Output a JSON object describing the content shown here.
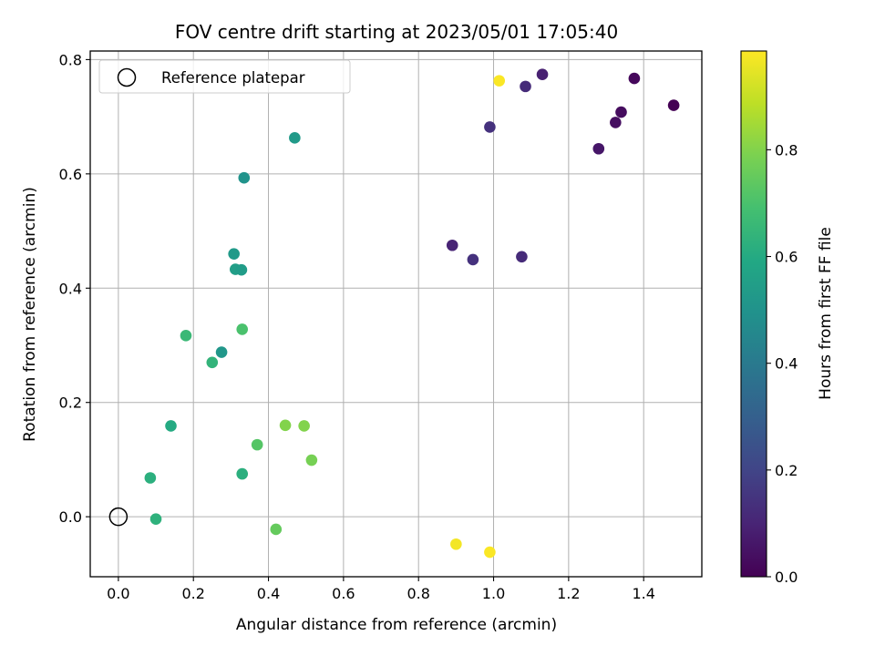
{
  "chart_data": {
    "type": "scatter",
    "title": "FOV centre drift starting at 2023/05/01 17:05:40",
    "xlabel": "Angular distance from reference (arcmin)",
    "ylabel": "Rotation from reference (arcmin)",
    "xlim": [
      -0.075,
      1.555
    ],
    "ylim": [
      -0.105,
      0.815
    ],
    "xticks": [
      0.0,
      0.2,
      0.4,
      0.6,
      0.8,
      1.0,
      1.2,
      1.4
    ],
    "yticks": [
      0.0,
      0.2,
      0.4,
      0.6,
      0.8
    ],
    "grid": true,
    "legend": {
      "placement": "upper-left",
      "entries": [
        {
          "label": "Reference platepar",
          "marker": "open-circle",
          "x": 0.0,
          "y": 0.0
        }
      ]
    },
    "colorbar": {
      "label": "Hours from first FF file",
      "colormap": "viridis",
      "range": [
        0.0,
        0.985
      ],
      "ticks": [
        0.0,
        0.2,
        0.4,
        0.6,
        0.8
      ]
    },
    "points": [
      {
        "x": 1.48,
        "y": 0.72,
        "c": 0.0
      },
      {
        "x": 1.375,
        "y": 0.767,
        "c": 0.02
      },
      {
        "x": 1.34,
        "y": 0.708,
        "c": 0.03
      },
      {
        "x": 1.325,
        "y": 0.69,
        "c": 0.04
      },
      {
        "x": 1.28,
        "y": 0.644,
        "c": 0.06
      },
      {
        "x": 1.13,
        "y": 0.774,
        "c": 0.09
      },
      {
        "x": 1.085,
        "y": 0.753,
        "c": 0.12
      },
      {
        "x": 0.99,
        "y": 0.682,
        "c": 0.14
      },
      {
        "x": 0.89,
        "y": 0.475,
        "c": 0.1
      },
      {
        "x": 0.945,
        "y": 0.45,
        "c": 0.14
      },
      {
        "x": 1.075,
        "y": 0.455,
        "c": 0.12
      },
      {
        "x": 0.47,
        "y": 0.663,
        "c": 0.53
      },
      {
        "x": 0.335,
        "y": 0.593,
        "c": 0.5
      },
      {
        "x": 0.308,
        "y": 0.46,
        "c": 0.53
      },
      {
        "x": 0.312,
        "y": 0.433,
        "c": 0.55
      },
      {
        "x": 0.328,
        "y": 0.432,
        "c": 0.54
      },
      {
        "x": 0.275,
        "y": 0.288,
        "c": 0.52
      },
      {
        "x": 0.33,
        "y": 0.328,
        "c": 0.7
      },
      {
        "x": 0.18,
        "y": 0.317,
        "c": 0.66
      },
      {
        "x": 0.25,
        "y": 0.27,
        "c": 0.64
      },
      {
        "x": 0.14,
        "y": 0.159,
        "c": 0.6
      },
      {
        "x": 0.085,
        "y": 0.068,
        "c": 0.62
      },
      {
        "x": 0.1,
        "y": -0.004,
        "c": 0.63
      },
      {
        "x": 0.33,
        "y": 0.075,
        "c": 0.62
      },
      {
        "x": 0.37,
        "y": 0.126,
        "c": 0.72
      },
      {
        "x": 0.445,
        "y": 0.16,
        "c": 0.8
      },
      {
        "x": 0.495,
        "y": 0.159,
        "c": 0.8
      },
      {
        "x": 0.515,
        "y": 0.099,
        "c": 0.78
      },
      {
        "x": 0.42,
        "y": -0.022,
        "c": 0.75
      },
      {
        "x": 1.015,
        "y": 0.763,
        "c": 0.98
      },
      {
        "x": 0.9,
        "y": -0.048,
        "c": 0.97
      },
      {
        "x": 0.99,
        "y": -0.062,
        "c": 0.98
      }
    ]
  }
}
